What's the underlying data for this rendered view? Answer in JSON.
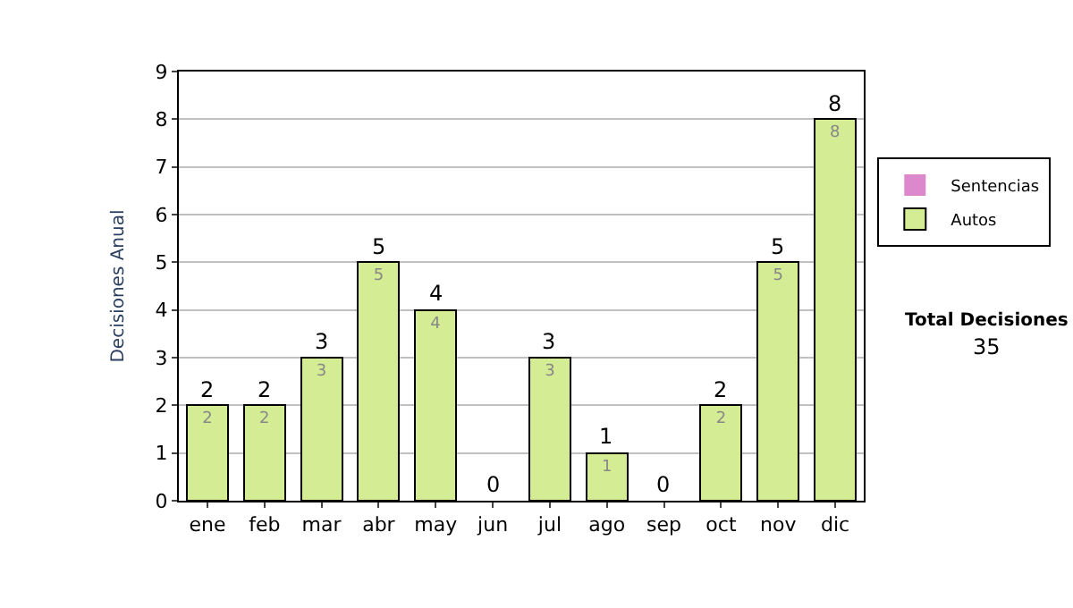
{
  "chart_data": {
    "type": "bar",
    "stacked": true,
    "ylabel": "Decisiones Anual",
    "categories": [
      "ene",
      "feb",
      "mar",
      "abr",
      "may",
      "jun",
      "jul",
      "ago",
      "sep",
      "oct",
      "nov",
      "dic"
    ],
    "series": [
      {
        "name": "Autos",
        "color": "#d4ec94",
        "values": [
          2,
          2,
          3,
          5,
          4,
          0,
          3,
          1,
          0,
          2,
          5,
          8
        ],
        "value_labels": [
          "2",
          "2",
          "3",
          "5",
          "4",
          null,
          "3",
          "1",
          null,
          "2",
          "5",
          "8"
        ]
      },
      {
        "name": "Sentencias",
        "color": "#dd88cc",
        "values": [
          0,
          0,
          0,
          0,
          0,
          0,
          0,
          0,
          0,
          0,
          0,
          0
        ]
      }
    ],
    "totals": [
      "2",
      "2",
      "3",
      "5",
      "4",
      "0",
      "3",
      "1",
      "0",
      "2",
      "5",
      "8"
    ],
    "ylim": [
      0,
      9
    ],
    "yticks": [
      0,
      1,
      2,
      3,
      4,
      5,
      6,
      7,
      8,
      9
    ],
    "grid": "y",
    "legend": "right",
    "annotations": [
      "Total Decisiones",
      "35"
    ]
  }
}
